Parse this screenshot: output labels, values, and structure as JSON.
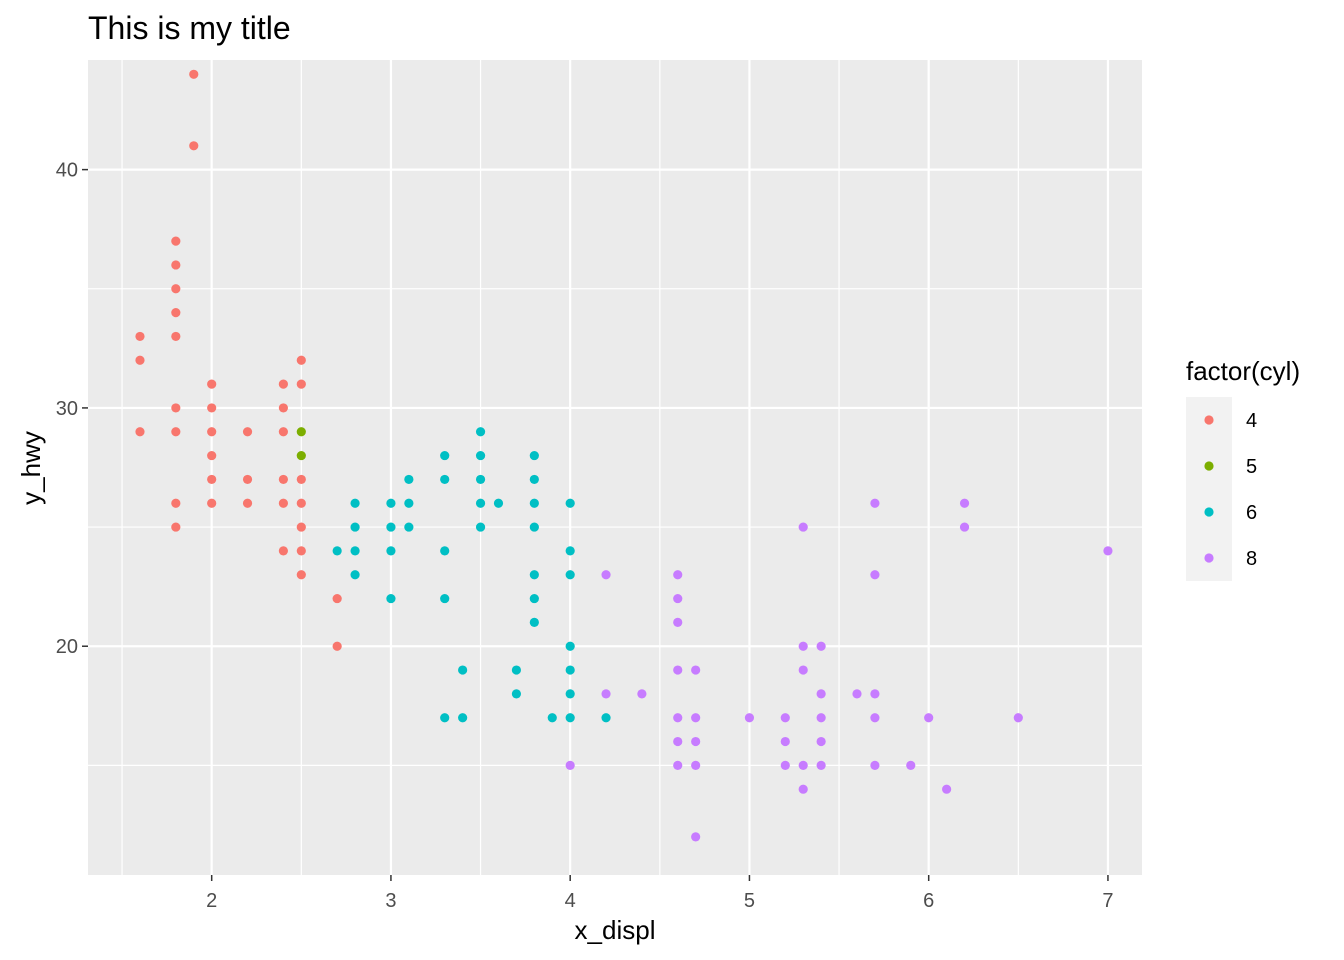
{
  "chart_data": {
    "type": "scatter",
    "title": "This is my title",
    "xlabel": "x_displ",
    "ylabel": "y_hwy",
    "xlim": [
      1.31,
      7.19
    ],
    "ylim": [
      10.4,
      44.6
    ],
    "x_ticks": [
      2,
      3,
      4,
      5,
      6,
      7
    ],
    "y_ticks": [
      20,
      30,
      40
    ],
    "grid": true,
    "legend": {
      "title": "factor(cyl)",
      "placement": "right",
      "entries": [
        {
          "label": "4",
          "color": "#F8766D"
        },
        {
          "label": "5",
          "color": "#7CAE00"
        },
        {
          "label": "6",
          "color": "#00BFC4"
        },
        {
          "label": "8",
          "color": "#C77CFF"
        }
      ]
    },
    "background": "#EBEBEB",
    "series": [
      {
        "name": "4",
        "color": "#F8766D",
        "points": [
          [
            1.6,
            33
          ],
          [
            1.6,
            32
          ],
          [
            1.6,
            29
          ],
          [
            1.8,
            37
          ],
          [
            1.8,
            36
          ],
          [
            1.8,
            35
          ],
          [
            1.8,
            34
          ],
          [
            1.8,
            33
          ],
          [
            1.8,
            30
          ],
          [
            1.8,
            29
          ],
          [
            1.8,
            26
          ],
          [
            1.8,
            25
          ],
          [
            1.9,
            44
          ],
          [
            1.9,
            41
          ],
          [
            2.0,
            31
          ],
          [
            2.0,
            30
          ],
          [
            2.0,
            29
          ],
          [
            2.0,
            28
          ],
          [
            2.0,
            27
          ],
          [
            2.0,
            26
          ],
          [
            2.2,
            29
          ],
          [
            2.2,
            27
          ],
          [
            2.2,
            26
          ],
          [
            2.4,
            31
          ],
          [
            2.4,
            30
          ],
          [
            2.4,
            29
          ],
          [
            2.4,
            27
          ],
          [
            2.4,
            26
          ],
          [
            2.4,
            24
          ],
          [
            2.5,
            32
          ],
          [
            2.5,
            31
          ],
          [
            2.5,
            27
          ],
          [
            2.5,
            26
          ],
          [
            2.5,
            25
          ],
          [
            2.5,
            24
          ],
          [
            2.5,
            23
          ],
          [
            2.7,
            22
          ],
          [
            2.7,
            20
          ]
        ]
      },
      {
        "name": "5",
        "color": "#7CAE00",
        "points": [
          [
            2.5,
            29
          ],
          [
            2.5,
            28
          ]
        ]
      },
      {
        "name": "6",
        "color": "#00BFC4",
        "points": [
          [
            2.7,
            24
          ],
          [
            2.8,
            26
          ],
          [
            2.8,
            25
          ],
          [
            2.8,
            24
          ],
          [
            2.8,
            23
          ],
          [
            3.0,
            26
          ],
          [
            3.0,
            25
          ],
          [
            3.0,
            24
          ],
          [
            3.0,
            22
          ],
          [
            3.1,
            27
          ],
          [
            3.1,
            26
          ],
          [
            3.1,
            25
          ],
          [
            3.3,
            28
          ],
          [
            3.3,
            27
          ],
          [
            3.3,
            24
          ],
          [
            3.3,
            22
          ],
          [
            3.3,
            17
          ],
          [
            3.4,
            19
          ],
          [
            3.4,
            17
          ],
          [
            3.5,
            29
          ],
          [
            3.5,
            28
          ],
          [
            3.5,
            27
          ],
          [
            3.5,
            26
          ],
          [
            3.5,
            25
          ],
          [
            3.6,
            26
          ],
          [
            3.7,
            19
          ],
          [
            3.7,
            18
          ],
          [
            3.8,
            28
          ],
          [
            3.8,
            27
          ],
          [
            3.8,
            26
          ],
          [
            3.8,
            25
          ],
          [
            3.8,
            23
          ],
          [
            3.8,
            22
          ],
          [
            3.8,
            21
          ],
          [
            3.9,
            17
          ],
          [
            4.0,
            26
          ],
          [
            4.0,
            24
          ],
          [
            4.0,
            23
          ],
          [
            4.0,
            20
          ],
          [
            4.0,
            19
          ],
          [
            4.0,
            18
          ],
          [
            4.0,
            17
          ],
          [
            4.2,
            17
          ]
        ]
      },
      {
        "name": "8",
        "color": "#C77CFF",
        "points": [
          [
            4.0,
            15
          ],
          [
            4.2,
            23
          ],
          [
            4.2,
            18
          ],
          [
            4.4,
            18
          ],
          [
            4.6,
            23
          ],
          [
            4.6,
            22
          ],
          [
            4.6,
            21
          ],
          [
            4.6,
            19
          ],
          [
            4.6,
            17
          ],
          [
            4.6,
            16
          ],
          [
            4.6,
            15
          ],
          [
            4.7,
            19
          ],
          [
            4.7,
            17
          ],
          [
            4.7,
            16
          ],
          [
            4.7,
            15
          ],
          [
            4.7,
            12
          ],
          [
            5.0,
            17
          ],
          [
            5.2,
            17
          ],
          [
            5.2,
            16
          ],
          [
            5.2,
            15
          ],
          [
            5.3,
            25
          ],
          [
            5.3,
            20
          ],
          [
            5.3,
            19
          ],
          [
            5.3,
            15
          ],
          [
            5.3,
            14
          ],
          [
            5.4,
            20
          ],
          [
            5.4,
            18
          ],
          [
            5.4,
            17
          ],
          [
            5.4,
            16
          ],
          [
            5.4,
            15
          ],
          [
            5.6,
            18
          ],
          [
            5.7,
            26
          ],
          [
            5.7,
            23
          ],
          [
            5.7,
            18
          ],
          [
            5.7,
            17
          ],
          [
            5.7,
            15
          ],
          [
            5.9,
            15
          ],
          [
            6.0,
            17
          ],
          [
            6.1,
            14
          ],
          [
            6.2,
            26
          ],
          [
            6.2,
            25
          ],
          [
            6.5,
            17
          ],
          [
            7.0,
            24
          ]
        ]
      }
    ]
  }
}
